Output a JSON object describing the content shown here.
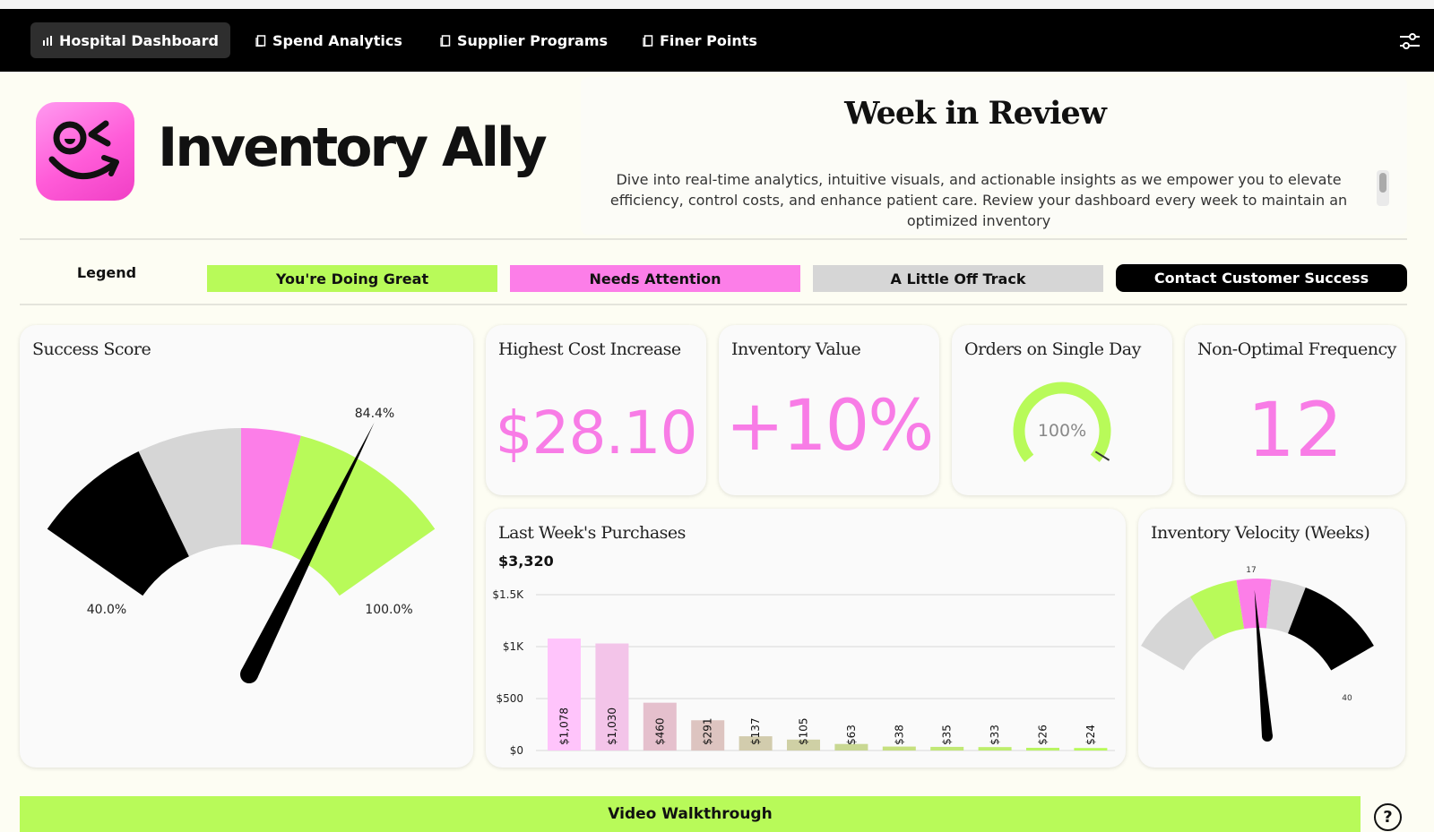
{
  "nav": {
    "tabs": [
      {
        "label": "Hospital Dashboard",
        "icon": "bar-chart-icon",
        "active": true
      },
      {
        "label": "Spend Analytics",
        "icon": "page-icon"
      },
      {
        "label": "Supplier Programs",
        "icon": "page-icon"
      },
      {
        "label": "Finer Points",
        "icon": "page-icon"
      }
    ],
    "settings_icon": "sliders-icon"
  },
  "brand": {
    "name": "Inventory Ally",
    "logo_icon": "winking-face-logo"
  },
  "week_in_review": {
    "title": "Week in Review",
    "text": "Dive into real-time analytics, intuitive visuals, and actionable insights as we empower you to elevate efficiency, control costs, and enhance patient care. Review your dashboard every week to maintain an optimized inventory"
  },
  "legend": {
    "label": "Legend",
    "items": [
      {
        "label": "You're Doing Great",
        "color": "#b8fa59"
      },
      {
        "label": "Needs Attention",
        "color": "#fc7ee8"
      },
      {
        "label": "A Little Off Track",
        "color": "#d6d6d6"
      }
    ],
    "contact_button": "Contact Customer Success"
  },
  "colors": {
    "green": "#b8fa59",
    "pink": "#fc7ee8",
    "gray": "#d6d6d6",
    "black": "#000000",
    "accent_text": "#f87ce6"
  },
  "success_score": {
    "title": "Success Score",
    "value_label": "84.4%",
    "value": 84.4,
    "min_label": "40.0%",
    "min": 40,
    "max_label": "100.0%",
    "max": 100
  },
  "highest_cost_increase": {
    "title": "Highest Cost Increase",
    "value": "$28.10"
  },
  "inventory_value": {
    "title": "Inventory Value",
    "value": "+10%"
  },
  "orders_single_day": {
    "title": "Orders on Single Day",
    "value_label": "100%",
    "value": 100
  },
  "non_optimal_frequency": {
    "title": "Non-Optimal Frequency",
    "value": "12"
  },
  "purchases": {
    "title": "Last Week's Purchases",
    "total": "$3,320"
  },
  "chart_data": {
    "type": "bar",
    "title": "Last Week's Purchases",
    "subtitle": "$3,320",
    "values": [
      1078,
      1030,
      460,
      291,
      137,
      105,
      63,
      38,
      35,
      33,
      26,
      24
    ],
    "value_labels": [
      "$1,078",
      "$1,030",
      "$460",
      "$291",
      "$137",
      "$105",
      "$63",
      "$38",
      "$35",
      "$33",
      "$26",
      "$24"
    ],
    "bar_colors": [
      "#ffc4fb",
      "#f3c4e9",
      "#e5c0cd",
      "#ddc4c0",
      "#d2ccad",
      "#cfd0a5",
      "#c9d893",
      "#c6e07f",
      "#c1e876",
      "#bdee6d",
      "#b9f463",
      "#b8fa59"
    ],
    "y_ticks": [
      {
        "value": 0,
        "label": "$0"
      },
      {
        "value": 500,
        "label": "$500"
      },
      {
        "value": 1000,
        "label": "$1K"
      },
      {
        "value": 1500,
        "label": "$1.5K"
      }
    ],
    "ylim": [
      0,
      1500
    ],
    "grid": true
  },
  "velocity": {
    "title": "Inventory Velocity (Weeks)",
    "value_label": "17",
    "value": 17,
    "max_label": "40",
    "max": 40
  },
  "video_button": "Video Walkthrough",
  "help_button": "?"
}
